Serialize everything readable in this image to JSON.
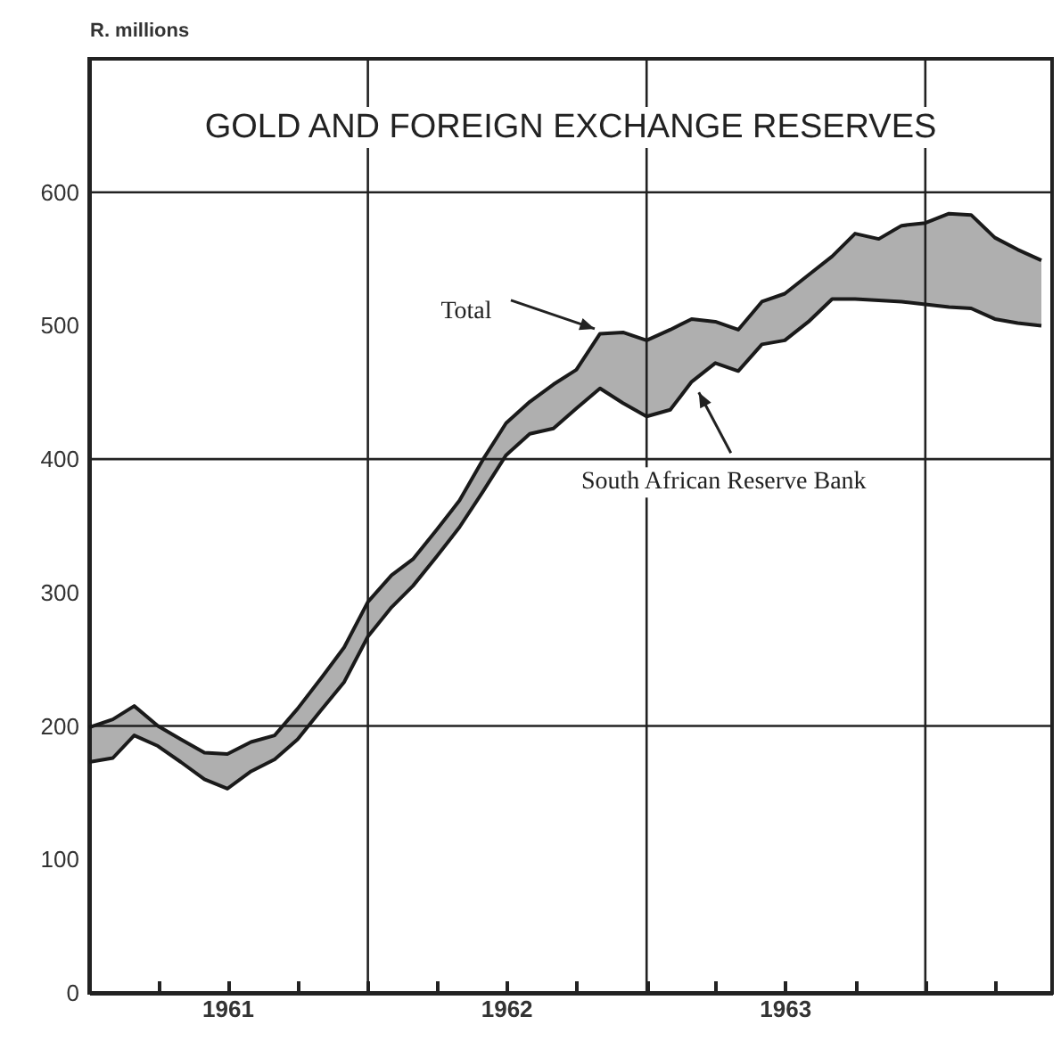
{
  "chart_data": {
    "type": "line",
    "title": "GOLD AND FOREIGN EXCHANGE RESERVES",
    "ylabel": "R. millions",
    "x": [
      "1961-01",
      "1961-02",
      "1961-03",
      "1961-04",
      "1961-05",
      "1961-06",
      "1961-07",
      "1961-08",
      "1961-09",
      "1961-10",
      "1961-11",
      "1961-12",
      "1962-01",
      "1962-02",
      "1962-03",
      "1962-04",
      "1962-05",
      "1962-06",
      "1962-07",
      "1962-08",
      "1962-09",
      "1962-10",
      "1962-11",
      "1962-12",
      "1963-01",
      "1963-02",
      "1963-03",
      "1963-04",
      "1963-05",
      "1963-06",
      "1963-07",
      "1963-08",
      "1963-09",
      "1963-10",
      "1963-11",
      "1963-12",
      "1964-01",
      "1964-02",
      "1964-03",
      "1964-04",
      "1964-05",
      "1964-06"
    ],
    "series": [
      {
        "color": "#1a1a1a",
        "values": [
          199,
          205,
          215,
          200,
          190,
          180,
          179,
          188,
          193,
          213,
          236,
          259,
          293,
          313,
          325,
          347,
          369,
          400,
          427,
          443,
          456,
          467,
          494,
          495,
          489,
          497,
          505,
          503,
          497,
          518,
          524,
          538,
          552,
          569,
          565,
          575,
          577,
          584,
          583,
          566,
          557,
          549
        ],
        "lower": [
          173,
          176,
          193,
          185,
          173,
          160,
          153,
          166,
          175,
          190,
          212,
          233,
          267,
          289,
          305,
          327,
          349,
          376,
          403,
          419,
          423,
          438,
          453,
          442,
          432,
          437,
          458,
          472,
          466,
          486,
          489,
          503,
          520,
          520,
          519,
          518,
          516,
          514,
          513,
          505,
          502,
          500
        ],
        "upper": [
          199,
          205,
          215,
          200,
          190,
          180,
          179,
          188,
          193,
          213,
          236,
          259,
          293,
          313,
          325,
          347,
          369,
          400,
          427,
          443,
          456,
          467,
          494,
          495,
          489,
          497,
          505,
          503,
          497,
          518,
          524,
          538,
          552,
          569,
          565,
          575,
          577,
          584,
          583,
          566,
          557,
          549
        ]
      },
      {
        "color": "#1a1a1a",
        "values": [
          173,
          176,
          193,
          185,
          173,
          160,
          153,
          166,
          175,
          190,
          212,
          233,
          267,
          289,
          305,
          327,
          349,
          376,
          403,
          419,
          423,
          438,
          453,
          442,
          432,
          437,
          458,
          472,
          466,
          486,
          489,
          503,
          520,
          520,
          519,
          518,
          516,
          514,
          513,
          505,
          502,
          500
        ]
      }
    ],
    "xlim": [
      "1961-01-01",
      "1964-06-15"
    ],
    "xticks": [
      {
        "value": "1961-04",
        "label": null
      },
      {
        "value": "1961-07",
        "label": "1961"
      },
      {
        "value": "1961-10",
        "label": null
      },
      {
        "value": "1962-01",
        "label": null
      },
      {
        "value": "1962-04",
        "label": null
      },
      {
        "value": "1962-07",
        "label": "1962"
      },
      {
        "value": "1962-10",
        "label": null
      },
      {
        "value": "1963-01",
        "label": null
      },
      {
        "value": "1963-04",
        "label": null
      },
      {
        "value": "1963-07",
        "label": "1963"
      },
      {
        "value": "1963-10",
        "label": null
      },
      {
        "value": "1964-01",
        "label": null
      },
      {
        "value": "1964-04",
        "label": null
      }
    ],
    "ylim": [
      0,
      700
    ],
    "yticks": [
      0,
      100,
      200,
      300,
      400,
      500,
      600
    ],
    "ref_lines": [
      {
        "axis": "x",
        "value": "1962-01"
      },
      {
        "axis": "x",
        "value": "1963-01"
      },
      {
        "axis": "x",
        "value": "1964-01"
      },
      {
        "axis": "y",
        "value": 200
      },
      {
        "axis": "y",
        "value": 400
      },
      {
        "axis": "y",
        "value": 600
      }
    ],
    "annotations": [
      {
        "text": "Total",
        "x": "1962-11",
        "y": 495
      },
      {
        "text": "South African Reserve Bank",
        "x": "1963-03",
        "y": 458
      }
    ],
    "line_style": "solid",
    "marker": "none"
  }
}
